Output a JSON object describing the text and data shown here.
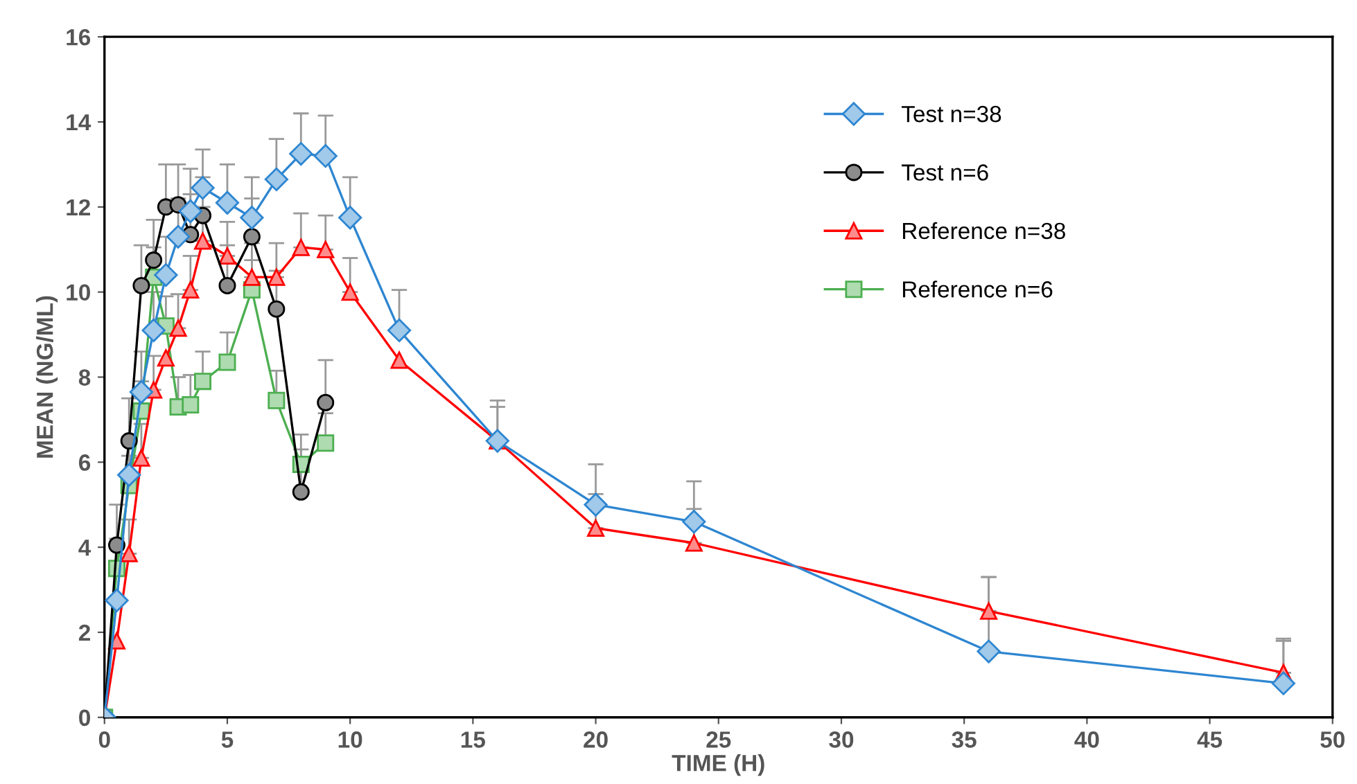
{
  "chart_data": {
    "type": "line",
    "xlabel": "TIME (H)",
    "ylabel": "MEAN (NG/ML)",
    "xlim": [
      0,
      50
    ],
    "xticks": [
      0,
      5,
      10,
      15,
      20,
      25,
      30,
      35,
      40,
      45,
      50
    ],
    "ylim": [
      0,
      16
    ],
    "yticks": [
      0,
      2,
      4,
      6,
      8,
      10,
      12,
      14,
      16
    ],
    "grid": false,
    "legend": "top right",
    "series": [
      {
        "name": "Test n=38",
        "color": "#2e86d1",
        "marker": "diamond",
        "x": [
          0,
          0.5,
          1,
          1.5,
          2,
          2.5,
          3,
          3.5,
          4,
          5,
          6,
          7,
          8,
          9,
          10,
          12,
          16,
          20,
          24,
          36,
          48
        ],
        "values": [
          0,
          2.75,
          5.7,
          7.65,
          9.1,
          10.4,
          11.3,
          11.9,
          12.45,
          12.1,
          11.75,
          12.65,
          13.25,
          13.2,
          11.75,
          9.1,
          6.5,
          5.0,
          4.6,
          1.55,
          0.8
        ],
        "errors": [
          null,
          null,
          [
            5.7,
            6.6
          ],
          [
            7.65,
            8.6
          ],
          [
            9.1,
            10.0
          ],
          [
            10.4,
            11.3
          ],
          [
            11.3,
            12.2
          ],
          [
            11.9,
            12.9
          ],
          [
            12.45,
            13.35
          ],
          [
            12.1,
            13.0
          ],
          [
            11.75,
            12.7
          ],
          [
            12.65,
            13.6
          ],
          [
            13.25,
            14.2
          ],
          [
            13.2,
            14.15
          ],
          [
            11.75,
            12.7
          ],
          [
            9.1,
            10.05
          ],
          [
            6.5,
            7.45
          ],
          [
            5.0,
            5.95
          ],
          [
            4.6,
            5.55
          ],
          [
            1.55,
            3.3
          ],
          [
            0.8,
            1.8
          ]
        ]
      },
      {
        "name": "Test n=6",
        "color": "#000000",
        "marker": "circle",
        "x": [
          0,
          0.5,
          1,
          1.5,
          2,
          2.5,
          3,
          3.5,
          4,
          5,
          6,
          7,
          8,
          9
        ],
        "values": [
          0,
          4.05,
          6.5,
          10.15,
          10.75,
          12.0,
          12.05,
          11.35,
          11.8,
          10.15,
          11.3,
          9.6,
          5.3,
          7.4
        ],
        "errors": [
          null,
          [
            4.05,
            5.0
          ],
          [
            6.5,
            7.5
          ],
          [
            10.15,
            11.1
          ],
          [
            10.75,
            11.7
          ],
          [
            12.0,
            13.0
          ],
          [
            12.05,
            13.0
          ],
          [
            11.35,
            12.3
          ],
          [
            11.8,
            12.7
          ],
          [
            10.15,
            11.1
          ],
          [
            11.3,
            12.2
          ],
          [
            9.6,
            10.5
          ],
          [
            5.3,
            6.3
          ],
          [
            7.4,
            8.4
          ]
        ]
      },
      {
        "name": "Reference n=38",
        "color": "#ff0000",
        "marker": "triangle",
        "x": [
          0,
          0.5,
          1,
          1.5,
          2,
          2.5,
          3,
          3.5,
          4,
          5,
          6,
          7,
          8,
          9,
          10,
          12,
          16,
          20,
          24,
          36,
          48
        ],
        "values": [
          0,
          1.8,
          3.85,
          6.1,
          7.7,
          8.45,
          9.15,
          10.05,
          11.2,
          10.85,
          10.35,
          10.35,
          11.05,
          11.0,
          10.0,
          8.4,
          6.5,
          4.45,
          4.1,
          2.5,
          1.05
        ],
        "errors": [
          null,
          null,
          [
            3.85,
            4.65
          ],
          [
            6.1,
            6.9
          ],
          [
            7.7,
            8.5
          ],
          null,
          [
            9.15,
            9.95
          ],
          [
            10.05,
            10.85
          ],
          [
            11.2,
            12.0
          ],
          [
            10.85,
            11.65
          ],
          [
            10.35,
            11.15
          ],
          [
            10.35,
            11.15
          ],
          [
            11.05,
            11.85
          ],
          [
            11.0,
            11.8
          ],
          [
            10.0,
            10.8
          ],
          null,
          [
            6.5,
            7.3
          ],
          [
            4.45,
            5.25
          ],
          [
            4.1,
            4.9
          ],
          [
            2.5,
            3.3
          ],
          [
            1.05,
            1.85
          ]
        ]
      },
      {
        "name": "Reference n=6",
        "color": "#4caf50",
        "marker": "square",
        "x": [
          0,
          0.5,
          1,
          1.5,
          2,
          2.5,
          3,
          3.5,
          4,
          5,
          6,
          7,
          8,
          9
        ],
        "values": [
          0,
          3.5,
          5.45,
          7.2,
          10.35,
          9.2,
          7.3,
          7.35,
          7.9,
          8.35,
          10.05,
          7.45,
          5.95,
          6.45
        ],
        "errors": [
          null,
          [
            3.5,
            4.2
          ],
          [
            5.45,
            6.15
          ],
          [
            7.2,
            7.9
          ],
          [
            10.35,
            11.05
          ],
          [
            9.2,
            9.9
          ],
          [
            7.3,
            8.0
          ],
          [
            7.35,
            8.05
          ],
          [
            7.9,
            8.6
          ],
          [
            8.35,
            9.05
          ],
          [
            10.05,
            10.75
          ],
          [
            7.45,
            8.15
          ],
          [
            5.95,
            6.65
          ],
          [
            6.45,
            7.15
          ]
        ]
      }
    ]
  }
}
